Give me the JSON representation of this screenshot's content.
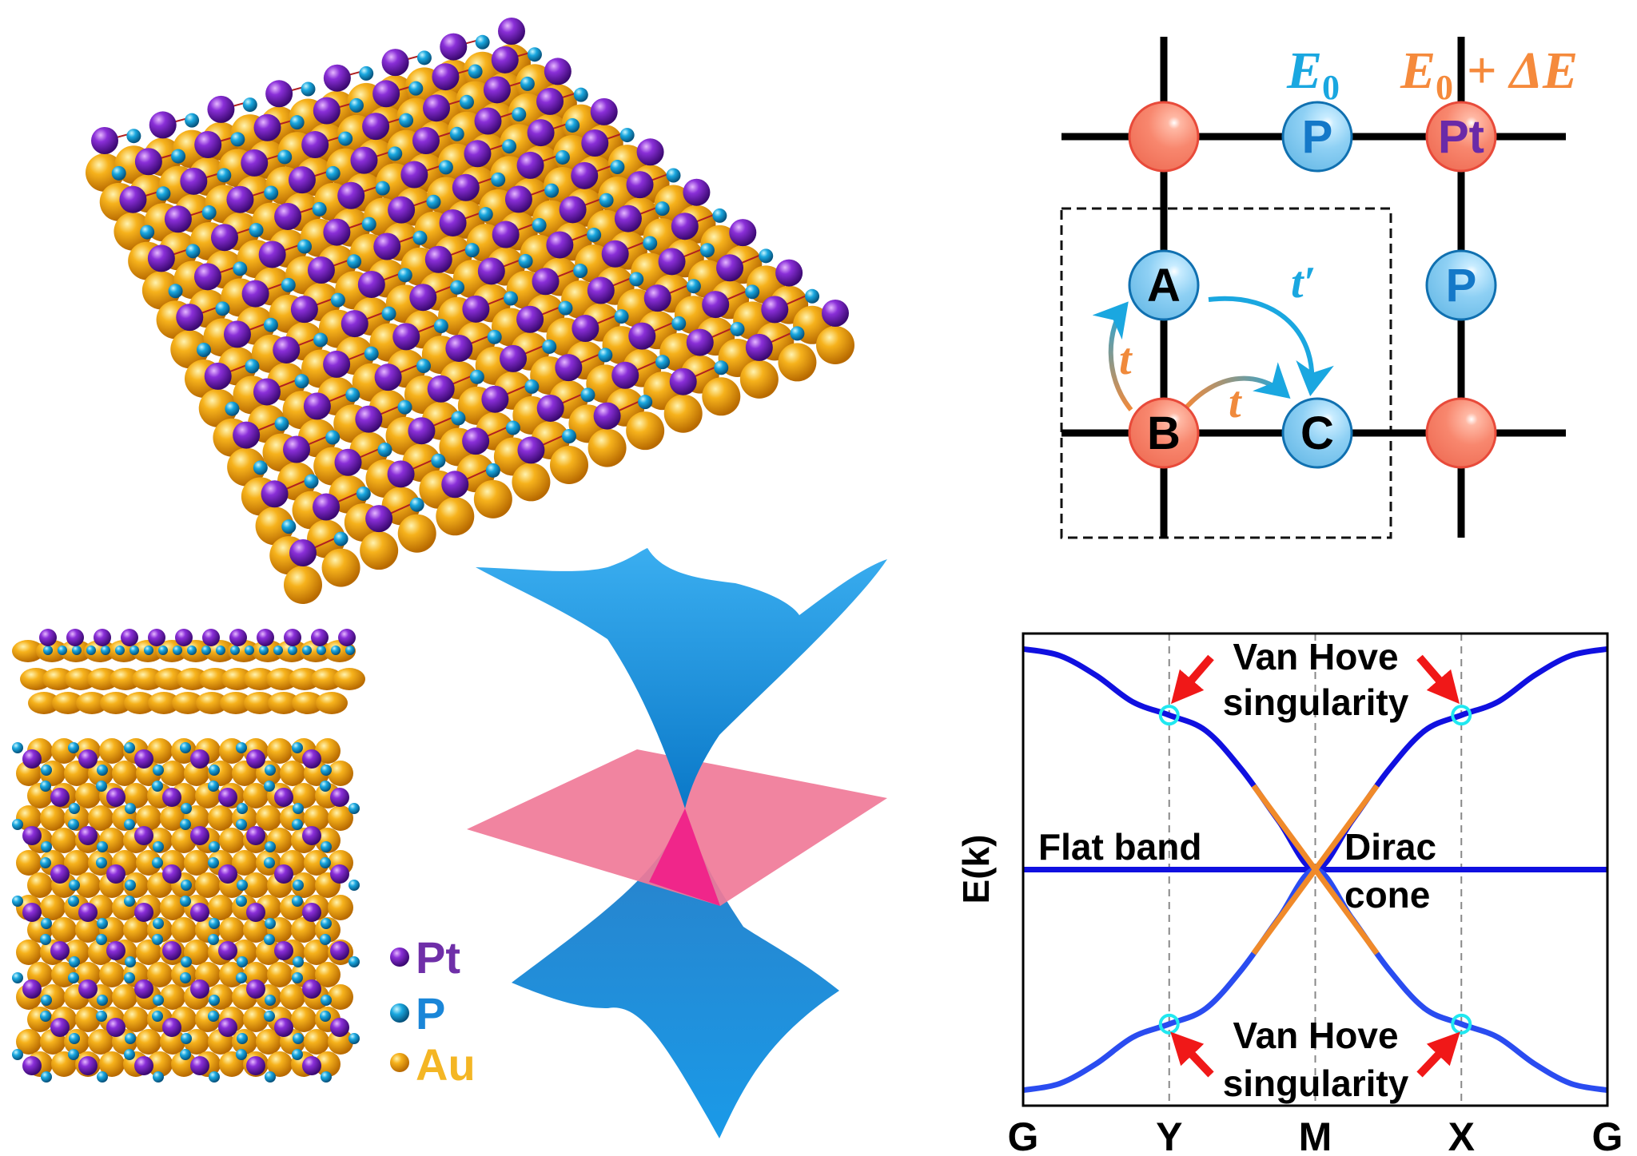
{
  "colors": {
    "pt": "#7a2fc4",
    "p": "#1aa3e0",
    "au": "#f0a010",
    "site_red": "#f5836b",
    "site_blue": "#8fd0f2",
    "band": "#1010e0",
    "band_lower": "#2a4cf0",
    "dirac": "#f08a2a",
    "vhs_marker": "#20e8f0",
    "arrow_red": "#f01818",
    "cone_blue": "#1e8fd8",
    "plane_pink": "#f07090"
  },
  "legend": [
    {
      "label": "Pt",
      "color": "#6f2fa8"
    },
    {
      "label": "P",
      "color": "#1a86d8"
    },
    {
      "label": "Au",
      "color": "#f4b624"
    }
  ],
  "lattice": {
    "e0_label": {
      "main": "E",
      "sub": "0"
    },
    "e0_de_label": {
      "main": "E",
      "sub": "0",
      "rest": " + ΔE"
    },
    "sites": [
      {
        "label": "",
        "kind": "red"
      },
      {
        "label": "P",
        "kind": "blue"
      },
      {
        "label": "Pt",
        "kind": "red"
      },
      {
        "label": "A",
        "kind": "blue"
      },
      {
        "label": "P",
        "kind": "blue"
      },
      {
        "label": "B",
        "kind": "red"
      },
      {
        "label": "C",
        "kind": "blue"
      },
      {
        "label": "",
        "kind": "red"
      }
    ],
    "hopping": {
      "t": "t",
      "t_prime": "t′"
    }
  },
  "chart_data": {
    "type": "line",
    "ylabel": "E(k)",
    "xlabel": "",
    "x_ticks": [
      {
        "x": 0,
        "label": "G"
      },
      {
        "x": 1,
        "label": "Y"
      },
      {
        "x": 2,
        "label": "M"
      },
      {
        "x": 3,
        "label": "X"
      },
      {
        "x": 4,
        "label": "G"
      }
    ],
    "xlim": [
      0,
      4
    ],
    "ylim": [
      -1.07,
      1.07
    ],
    "grid": "dashed vertical lines at Y, M, X",
    "x": [
      0,
      0.25,
      0.5,
      0.75,
      1,
      1.25,
      1.5,
      1.75,
      2,
      2.25,
      2.5,
      2.75,
      3,
      3.25,
      3.5,
      3.75,
      4
    ],
    "series": [
      {
        "values": [
          1,
          0.97,
          0.88,
          0.76,
          0.7,
          0.63,
          0.45,
          0.22,
          0,
          0.22,
          0.45,
          0.63,
          0.7,
          0.76,
          0.88,
          0.97,
          1
        ]
      },
      {
        "values": [
          0,
          0,
          0,
          0,
          0,
          0,
          0,
          0,
          0,
          0,
          0,
          0,
          0,
          0,
          0,
          0,
          0
        ]
      },
      {
        "values": [
          -1,
          -0.97,
          -0.88,
          -0.76,
          -0.7,
          -0.63,
          -0.45,
          -0.22,
          0,
          -0.22,
          -0.45,
          -0.63,
          -0.7,
          -0.76,
          -0.88,
          -0.97,
          -1
        ]
      }
    ],
    "dirac_highlight_abs_energy": 0.38,
    "vhs_points": [
      {
        "x": 1,
        "y": 0.7
      },
      {
        "x": 3,
        "y": 0.7
      },
      {
        "x": 1,
        "y": -0.7
      },
      {
        "x": 3,
        "y": -0.7
      }
    ],
    "annotations": {
      "vhs_top_line1": "Van Hove",
      "vhs_top_line2": "singularity",
      "vhs_bottom_line1": "Van Hove",
      "vhs_bottom_line2": "singularity",
      "flat_band": "Flat band",
      "dirac_line1": "Dirac",
      "dirac_line2": "cone"
    }
  }
}
